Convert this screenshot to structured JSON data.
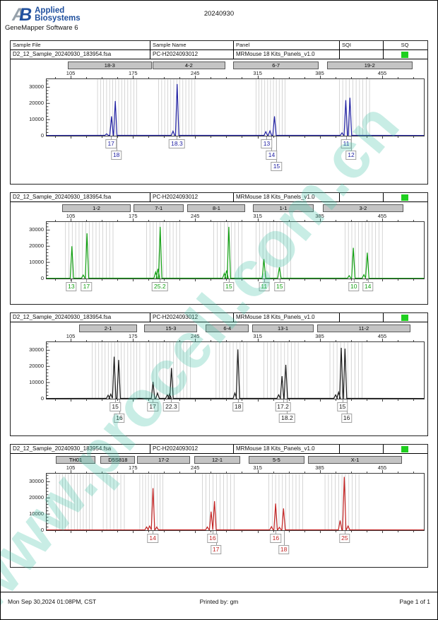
{
  "page": {
    "logo": {
      "mark_a": "A",
      "mark_b": "B",
      "brand_line1": "Applied",
      "brand_line2": "Biosystems"
    },
    "software": "GeneMapper Software 6",
    "doc_title": "20240930",
    "watermark": "www.procell.com.cn",
    "footer": {
      "left": "Mon Sep 30,2024 01:08PM, CST",
      "center": "Printed by: gm",
      "right": "Page 1 of 1"
    }
  },
  "columns": [
    "Sample File",
    "Sample Name",
    "Panel",
    "SQI",
    "SQ"
  ],
  "sample": {
    "file": "D2_12_Sample_20240930_183954.fsa",
    "name": "PC-H2024093012",
    "panel": "MRMouse 18 Kits_Panels_v1.0",
    "sqi": "",
    "sq_status_color": "#1FCF1F"
  },
  "axes": {
    "x_ticks": [
      {
        "v": "105",
        "p": 6.54
      },
      {
        "v": "175",
        "p": 23.0
      },
      {
        "v": "245",
        "p": 39.4
      },
      {
        "v": "315",
        "p": 55.9
      },
      {
        "v": "385",
        "p": 72.3
      },
      {
        "v": "455",
        "p": 88.8
      }
    ],
    "y_ticks": [
      0,
      10000,
      20000,
      30000
    ],
    "y_max": 35000,
    "y_unit": "RFU"
  },
  "chart_data": [
    {
      "type": "line",
      "channel": "blue",
      "color": "#2121A3",
      "label_rows": 3,
      "markers": [
        {
          "label": "18-3",
          "from": 5.8,
          "to": 27.9
        },
        {
          "label": "4-2",
          "from": 28.2,
          "to": 47.3
        },
        {
          "label": "6-7",
          "from": 49.5,
          "to": 72.0
        },
        {
          "label": "19-2",
          "from": 74.2,
          "to": 96.8
        }
      ],
      "bins": [
        {
          "from": 13.5,
          "to": 23.9,
          "n": 14
        },
        {
          "from": 29.7,
          "to": 39.3,
          "n": 13
        },
        {
          "from": 55.5,
          "to": 63.2,
          "n": 11
        },
        {
          "from": 77.6,
          "to": 85.6,
          "n": 10
        }
      ],
      "peaks": [
        {
          "x": 15.9,
          "rfu": 1200
        },
        {
          "x": 17.2,
          "rfu": 12000
        },
        {
          "x": 18.2,
          "rfu": 21500
        },
        {
          "x": 33.5,
          "rfu": 2800
        },
        {
          "x": 34.6,
          "rfu": 32000
        },
        {
          "x": 58.1,
          "rfu": 2500
        },
        {
          "x": 59.2,
          "rfu": 3000
        },
        {
          "x": 60.4,
          "rfu": 12000
        },
        {
          "x": 78.3,
          "rfu": 1800
        },
        {
          "x": 79.3,
          "rfu": 22000
        },
        {
          "x": 80.4,
          "rfu": 23500
        }
      ],
      "allele_labels": [
        {
          "text": "17",
          "x": 17.2,
          "row": 0
        },
        {
          "text": "18",
          "x": 18.6,
          "row": 1
        },
        {
          "text": "18.3",
          "x": 34.6,
          "row": 0
        },
        {
          "text": "13",
          "x": 58.3,
          "row": 0
        },
        {
          "text": "14",
          "x": 59.6,
          "row": 1
        },
        {
          "text": "15",
          "x": 60.9,
          "row": 2
        },
        {
          "text": "11",
          "x": 79.3,
          "row": 0
        },
        {
          "text": "12",
          "x": 80.6,
          "row": 1
        }
      ]
    },
    {
      "type": "line",
      "channel": "green",
      "color": "#12A012",
      "label_rows": 1,
      "markers": [
        {
          "label": "1-2",
          "from": 4.3,
          "to": 22.4
        },
        {
          "label": "7-1",
          "from": 23.2,
          "to": 36.4
        },
        {
          "label": "8-1",
          "from": 37.4,
          "to": 52.7
        },
        {
          "label": "1-1",
          "from": 54.6,
          "to": 70.8
        },
        {
          "label": "3-2",
          "from": 73.1,
          "to": 94.4
        }
      ],
      "bins": [
        {
          "from": 5.0,
          "to": 17.6,
          "n": 15
        },
        {
          "from": 26.5,
          "to": 35.3,
          "n": 11
        },
        {
          "from": 44.3,
          "to": 51.8,
          "n": 9
        },
        {
          "from": 55.5,
          "to": 64.7,
          "n": 11
        },
        {
          "from": 79.1,
          "to": 89.0,
          "n": 12
        }
      ],
      "peaks": [
        {
          "x": 6.7,
          "rfu": 20000
        },
        {
          "x": 9.7,
          "rfu": 2200
        },
        {
          "x": 10.7,
          "rfu": 28000
        },
        {
          "x": 28.9,
          "rfu": 4000
        },
        {
          "x": 29.5,
          "rfu": 6000
        },
        {
          "x": 30.1,
          "rfu": 32000
        },
        {
          "x": 47.1,
          "rfu": 3200
        },
        {
          "x": 47.7,
          "rfu": 5000
        },
        {
          "x": 48.3,
          "rfu": 32000
        },
        {
          "x": 57.6,
          "rfu": 12000
        },
        {
          "x": 61.7,
          "rfu": 7000
        },
        {
          "x": 80.2,
          "rfu": 1800
        },
        {
          "x": 81.3,
          "rfu": 19000
        },
        {
          "x": 84.1,
          "rfu": 2400
        },
        {
          "x": 85.0,
          "rfu": 16000
        }
      ],
      "allele_labels": [
        {
          "text": "13",
          "x": 6.7,
          "row": 0
        },
        {
          "text": "17",
          "x": 10.7,
          "row": 0
        },
        {
          "text": "25.2",
          "x": 30.1,
          "row": 0
        },
        {
          "text": "15",
          "x": 48.3,
          "row": 0
        },
        {
          "text": "11",
          "x": 57.6,
          "row": 0
        },
        {
          "text": "15",
          "x": 61.7,
          "row": 0
        },
        {
          "text": "10",
          "x": 81.3,
          "row": 0
        },
        {
          "text": "14",
          "x": 85.0,
          "row": 0
        }
      ]
    },
    {
      "type": "line",
      "channel": "black",
      "color": "#1a1a1a",
      "label_rows": 2,
      "markers": [
        {
          "label": "2-1",
          "from": 8.8,
          "to": 24.1
        },
        {
          "label": "15-3",
          "from": 26.0,
          "to": 40.0
        },
        {
          "label": "6-4",
          "from": 42.2,
          "to": 53.6
        },
        {
          "label": "13-1",
          "from": 54.4,
          "to": 70.8
        },
        {
          "label": "11-2",
          "from": 71.6,
          "to": 96.3
        }
      ],
      "bins": [
        {
          "from": 12.1,
          "to": 20.6,
          "n": 11
        },
        {
          "from": 21.5,
          "to": 24.7,
          "n": 5
        },
        {
          "from": 26.4,
          "to": 38.1,
          "n": 14
        },
        {
          "from": 44.9,
          "to": 53.1,
          "n": 10
        },
        {
          "from": 57.6,
          "to": 66.7,
          "n": 11
        },
        {
          "from": 75.1,
          "to": 83.6,
          "n": 10
        }
      ],
      "peaks": [
        {
          "x": 16.3,
          "rfu": 2200
        },
        {
          "x": 17.0,
          "rfu": 2800
        },
        {
          "x": 17.9,
          "rfu": 26000
        },
        {
          "x": 19.1,
          "rfu": 24000
        },
        {
          "x": 28.2,
          "rfu": 10500
        },
        {
          "x": 29.4,
          "rfu": 3500
        },
        {
          "x": 32.0,
          "rfu": 2400
        },
        {
          "x": 32.6,
          "rfu": 3000
        },
        {
          "x": 33.1,
          "rfu": 19000
        },
        {
          "x": 49.9,
          "rfu": 3500
        },
        {
          "x": 50.7,
          "rfu": 30500
        },
        {
          "x": 61.5,
          "rfu": 2400
        },
        {
          "x": 62.4,
          "rfu": 14000
        },
        {
          "x": 63.4,
          "rfu": 21000
        },
        {
          "x": 76.6,
          "rfu": 2400
        },
        {
          "x": 77.4,
          "rfu": 4000
        },
        {
          "x": 78.1,
          "rfu": 31500
        },
        {
          "x": 79.1,
          "rfu": 31000
        }
      ],
      "allele_labels": [
        {
          "text": "15",
          "x": 18.3,
          "row": 0
        },
        {
          "text": "16",
          "x": 19.4,
          "row": 1
        },
        {
          "text": "17",
          "x": 28.2,
          "row": 0
        },
        {
          "text": "22.3",
          "x": 33.1,
          "row": 0
        },
        {
          "text": "18",
          "x": 50.7,
          "row": 0
        },
        {
          "text": "17.2",
          "x": 62.6,
          "row": 0
        },
        {
          "text": "18.2",
          "x": 63.7,
          "row": 1
        },
        {
          "text": "15",
          "x": 78.3,
          "row": 0
        },
        {
          "text": "16",
          "x": 79.4,
          "row": 1
        }
      ]
    },
    {
      "type": "line",
      "channel": "red",
      "color": "#C32222",
      "label_rows": 2,
      "markers": [
        {
          "label": "TH01",
          "from": 2.6,
          "to": 13.1
        },
        {
          "label": "D5S818",
          "from": 14.4,
          "to": 23.6
        },
        {
          "label": "17-2",
          "from": 24.1,
          "to": 38.1
        },
        {
          "label": "12-1",
          "from": 39.1,
          "to": 51.4
        },
        {
          "label": "5-5",
          "from": 53.6,
          "to": 68.2
        },
        {
          "label": "X-1",
          "from": 69.3,
          "to": 94.0
        }
      ],
      "bins": [
        {
          "from": 2.6,
          "to": 12.1,
          "n": 13
        },
        {
          "from": 15.0,
          "to": 20.6,
          "n": 7
        },
        {
          "from": 24.7,
          "to": 30.8,
          "n": 9
        },
        {
          "from": 41.3,
          "to": 49.7,
          "n": 10
        },
        {
          "from": 58.9,
          "to": 67.9,
          "n": 11
        },
        {
          "from": 73.8,
          "to": 82.8,
          "n": 11
        }
      ],
      "peaks": [
        {
          "x": 26.5,
          "rfu": 2000
        },
        {
          "x": 27.3,
          "rfu": 2600
        },
        {
          "x": 28.2,
          "rfu": 26000
        },
        {
          "x": 29.2,
          "rfu": 2000
        },
        {
          "x": 42.6,
          "rfu": 2000
        },
        {
          "x": 43.6,
          "rfu": 11500
        },
        {
          "x": 44.5,
          "rfu": 18000
        },
        {
          "x": 59.6,
          "rfu": 2200
        },
        {
          "x": 60.7,
          "rfu": 16500
        },
        {
          "x": 61.7,
          "rfu": 1800
        },
        {
          "x": 62.8,
          "rfu": 13500
        },
        {
          "x": 77.8,
          "rfu": 6000
        },
        {
          "x": 78.9,
          "rfu": 33000
        },
        {
          "x": 79.9,
          "rfu": 2600
        }
      ],
      "allele_labels": [
        {
          "text": "14",
          "x": 28.2,
          "row": 0
        },
        {
          "text": "16",
          "x": 44.0,
          "row": 0
        },
        {
          "text": "17",
          "x": 44.9,
          "row": 1
        },
        {
          "text": "16",
          "x": 60.7,
          "row": 0
        },
        {
          "text": "18",
          "x": 62.8,
          "row": 1
        },
        {
          "text": "25",
          "x": 78.9,
          "row": 0
        }
      ]
    }
  ]
}
